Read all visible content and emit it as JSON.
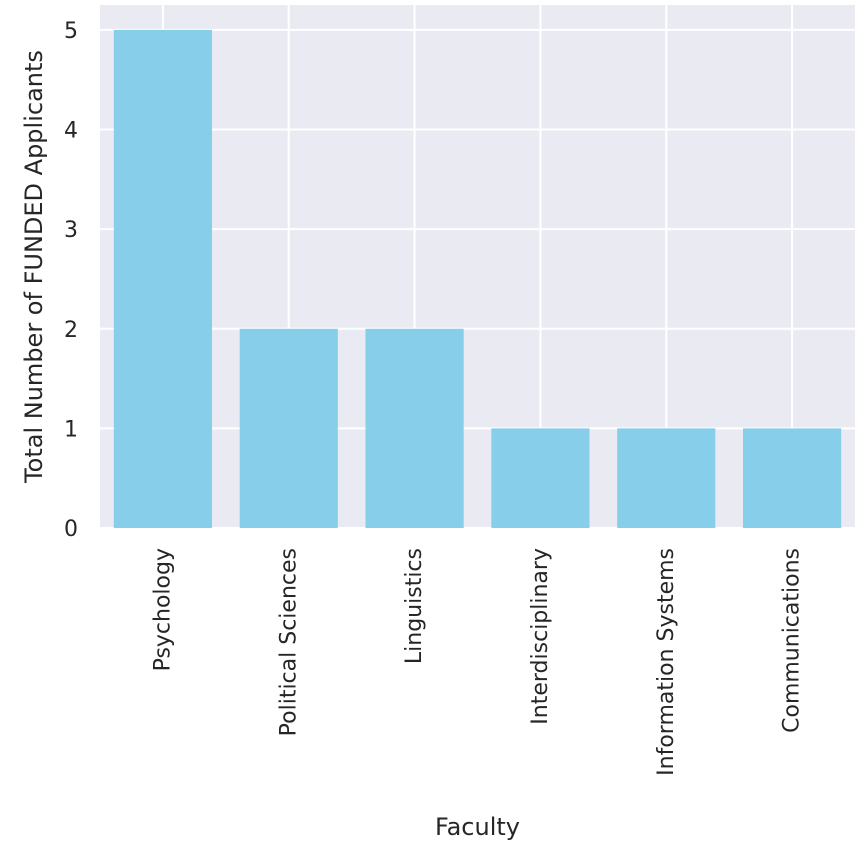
{
  "chart_data": {
    "type": "bar",
    "categories": [
      "Psychology",
      "Political Sciences",
      "Linguistics",
      "Interdisciplinary",
      "Information Systems",
      "Communications"
    ],
    "values": [
      5,
      2,
      2,
      1,
      1,
      1
    ],
    "xlabel": "Faculty",
    "ylabel": "Total Number of FUNDED Applicants",
    "ylim": [
      0,
      5.25
    ],
    "yticks": [
      0,
      1,
      2,
      3,
      4,
      5
    ],
    "grid": true,
    "colors": {
      "bar": "#87ceeb",
      "plot_background": "#eaeaf2",
      "grid": "#ffffff"
    }
  }
}
